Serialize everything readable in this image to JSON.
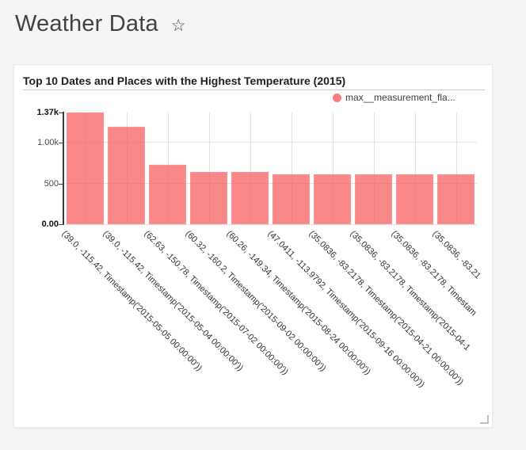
{
  "page": {
    "title": "Weather Data",
    "star_icon": "☆"
  },
  "chart_card": {
    "title": "Top 10 Dates and Places with the Highest Temperature (2015)",
    "legend_label": "max__measurement_fla...",
    "colors": {
      "legend_dot": "#F87E7E",
      "bar": "#F98787",
      "axis_line": "#3b3b3b",
      "gridline": "#e4e4e4"
    }
  },
  "chart_data": {
    "type": "bar",
    "title": "Top 10 Dates and Places with the Highest Temperature (2015)",
    "legend": [
      "max__measurement_fla..."
    ],
    "legend_position": "top-right",
    "grid": true,
    "x_tick_rotation": 45,
    "ylim": [
      0,
      1370
    ],
    "yticks": [
      {
        "label": "0.00",
        "value": 0,
        "bold": true,
        "grid": false
      },
      {
        "label": "500",
        "value": 500,
        "bold": false,
        "grid": true
      },
      {
        "label": "1.00k",
        "value": 1000,
        "bold": false,
        "grid": true
      },
      {
        "label": "1.37k",
        "value": 1370,
        "bold": true,
        "grid": false
      }
    ],
    "categories": [
      "(39.0, -115.42, Timestamp('2015-05-05 00:00:00'))",
      "(39.0, -115.42, Timestamp('2015-05-04 00:00:00'))",
      "(62.63, -150.78, Timestamp('2015-07-02 00:00:00'))",
      "(60.32, -160.2, Timestamp('2015-09-02 00:00:00'))",
      "(60.26, -149.34, Timestamp('2015-08-24 00:00:00'))",
      "(47.0411, -113.9792, Timestamp('2015-09-16 00:00:00'))",
      "(35.0836, -83.2178, Timestamp('2015-04-21 00:00:00'))",
      "(35.0836, -83.2178, Timestamp('2015-04-1",
      "(35.0836, -83.2178, Timestam",
      "(35.0836, -83.21"
    ],
    "values": [
      1370,
      1200,
      730,
      645,
      640,
      615,
      612,
      612,
      611,
      610
    ]
  }
}
